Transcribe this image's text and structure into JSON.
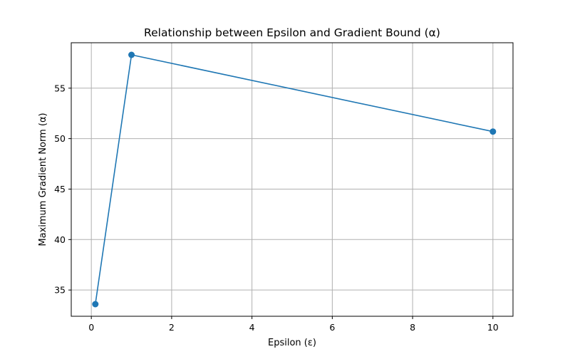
{
  "chart_data": {
    "type": "line",
    "title": "Relationship between Epsilon and Gradient Bound (α)",
    "xlabel": "Epsilon (ε)",
    "ylabel": "Maximum Gradient Norm (α)",
    "xlim": [
      -0.5,
      10.5
    ],
    "ylim": [
      32.4,
      59.5
    ],
    "xticks": [
      0,
      2,
      4,
      6,
      8,
      10
    ],
    "yticks": [
      35,
      40,
      45,
      50,
      55
    ],
    "grid": true,
    "series": [
      {
        "x": [
          0.1,
          1,
          10
        ],
        "y": [
          33.6,
          58.3,
          50.7
        ],
        "color": "#1f77b4",
        "marker": "circle"
      }
    ]
  }
}
